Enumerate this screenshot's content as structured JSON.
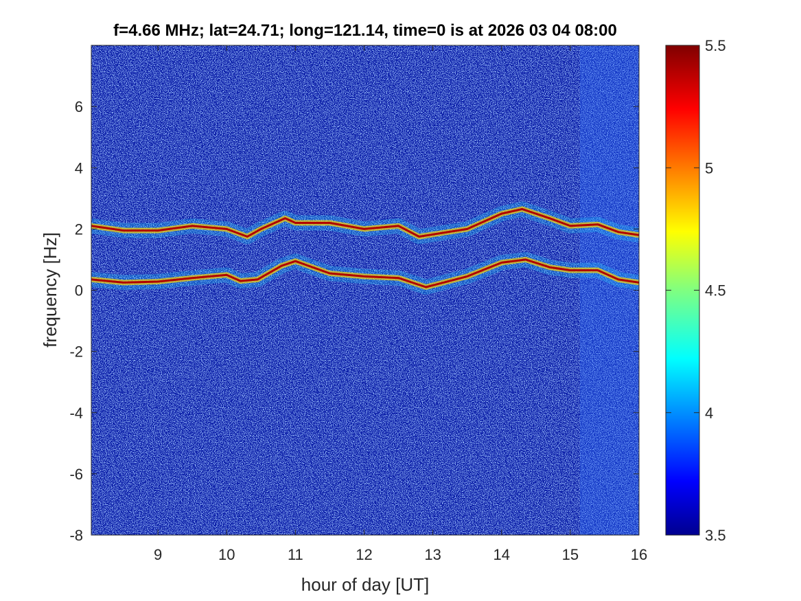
{
  "chart_data": {
    "type": "heatmap",
    "title": "f=4.66 MHz;  lat=24.71; long=121.14, time=0 is at 2026 03 04 08:00",
    "xlabel": "hour of day [UT]",
    "ylabel": "frequency [Hz]",
    "xlim": [
      8.03,
      16.0
    ],
    "ylim": [
      -8,
      8
    ],
    "xticks": [
      9,
      10,
      11,
      12,
      13,
      14,
      15,
      16
    ],
    "yticks": [
      -8,
      -6,
      -4,
      -2,
      0,
      2,
      4,
      6
    ],
    "colorbar": {
      "colormap": "jet",
      "limits": [
        3.5,
        5.5
      ],
      "ticks": [
        3.5,
        4,
        4.5,
        5,
        5.5
      ]
    },
    "series": [
      {
        "x": [
          8.03,
          8.5,
          9.0,
          9.5,
          10.0,
          10.2,
          10.45,
          10.8,
          11.0,
          11.5,
          12.0,
          12.5,
          12.9,
          13.5,
          14.0,
          14.35,
          14.7,
          15.0,
          15.4,
          15.7,
          16.0
        ],
        "y": [
          0.35,
          0.25,
          0.28,
          0.4,
          0.5,
          0.3,
          0.35,
          0.8,
          0.95,
          0.55,
          0.45,
          0.4,
          0.1,
          0.45,
          0.9,
          1.0,
          0.75,
          0.65,
          0.65,
          0.35,
          0.25
        ]
      },
      {
        "x": [
          8.03,
          8.5,
          9.0,
          9.5,
          10.0,
          10.3,
          10.5,
          10.85,
          11.0,
          11.5,
          12.0,
          12.5,
          12.8,
          13.5,
          14.0,
          14.3,
          14.7,
          15.0,
          15.4,
          15.7,
          16.0
        ],
        "y": [
          2.1,
          1.95,
          1.95,
          2.1,
          2.0,
          1.75,
          2.0,
          2.35,
          2.2,
          2.2,
          2.0,
          2.1,
          1.75,
          2.0,
          2.5,
          2.65,
          2.35,
          2.1,
          2.15,
          1.9,
          1.8
        ]
      }
    ]
  }
}
